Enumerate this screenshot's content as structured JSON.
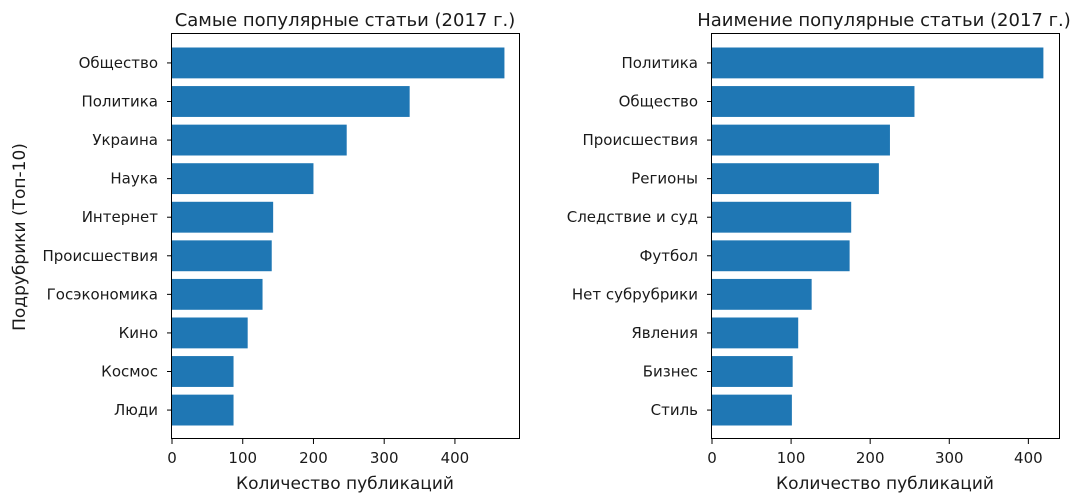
{
  "figure": {
    "ylabel": "Подрубрики (Топ-10)",
    "bar_color": "#1f77b4"
  },
  "chart_data": [
    {
      "type": "bar",
      "orientation": "horizontal",
      "title": "Самые популярные статьи (2017 г.)",
      "xlabel": "Количество публикаций",
      "ylabel": "Подрубрики (Топ-10)",
      "categories": [
        "Общество",
        "Политика",
        "Украина",
        "Наука",
        "Интернет",
        "Происшествия",
        "Госэкономика",
        "Кино",
        "Космос",
        "Люди"
      ],
      "values": [
        470,
        336,
        247,
        200,
        143,
        141,
        128,
        107,
        87,
        87
      ],
      "xlim": [
        0,
        492
      ],
      "xticks": [
        0,
        100,
        200,
        300,
        400
      ],
      "grid": false
    },
    {
      "type": "bar",
      "orientation": "horizontal",
      "title": "Наимение популярные статьи (2017 г.)",
      "xlabel": "Количество публикаций",
      "ylabel": "",
      "categories": [
        "Политика",
        "Общество",
        "Происшествия",
        "Регионы",
        "Следствие и суд",
        "Футбол",
        "Нет субрубрики",
        "Явления",
        "Бизнес",
        "Стиль"
      ],
      "values": [
        419,
        256,
        225,
        211,
        176,
        174,
        126,
        109,
        102,
        101
      ],
      "xlim": [
        0,
        440
      ],
      "xticks": [
        0,
        100,
        200,
        300,
        400
      ],
      "grid": false
    }
  ]
}
